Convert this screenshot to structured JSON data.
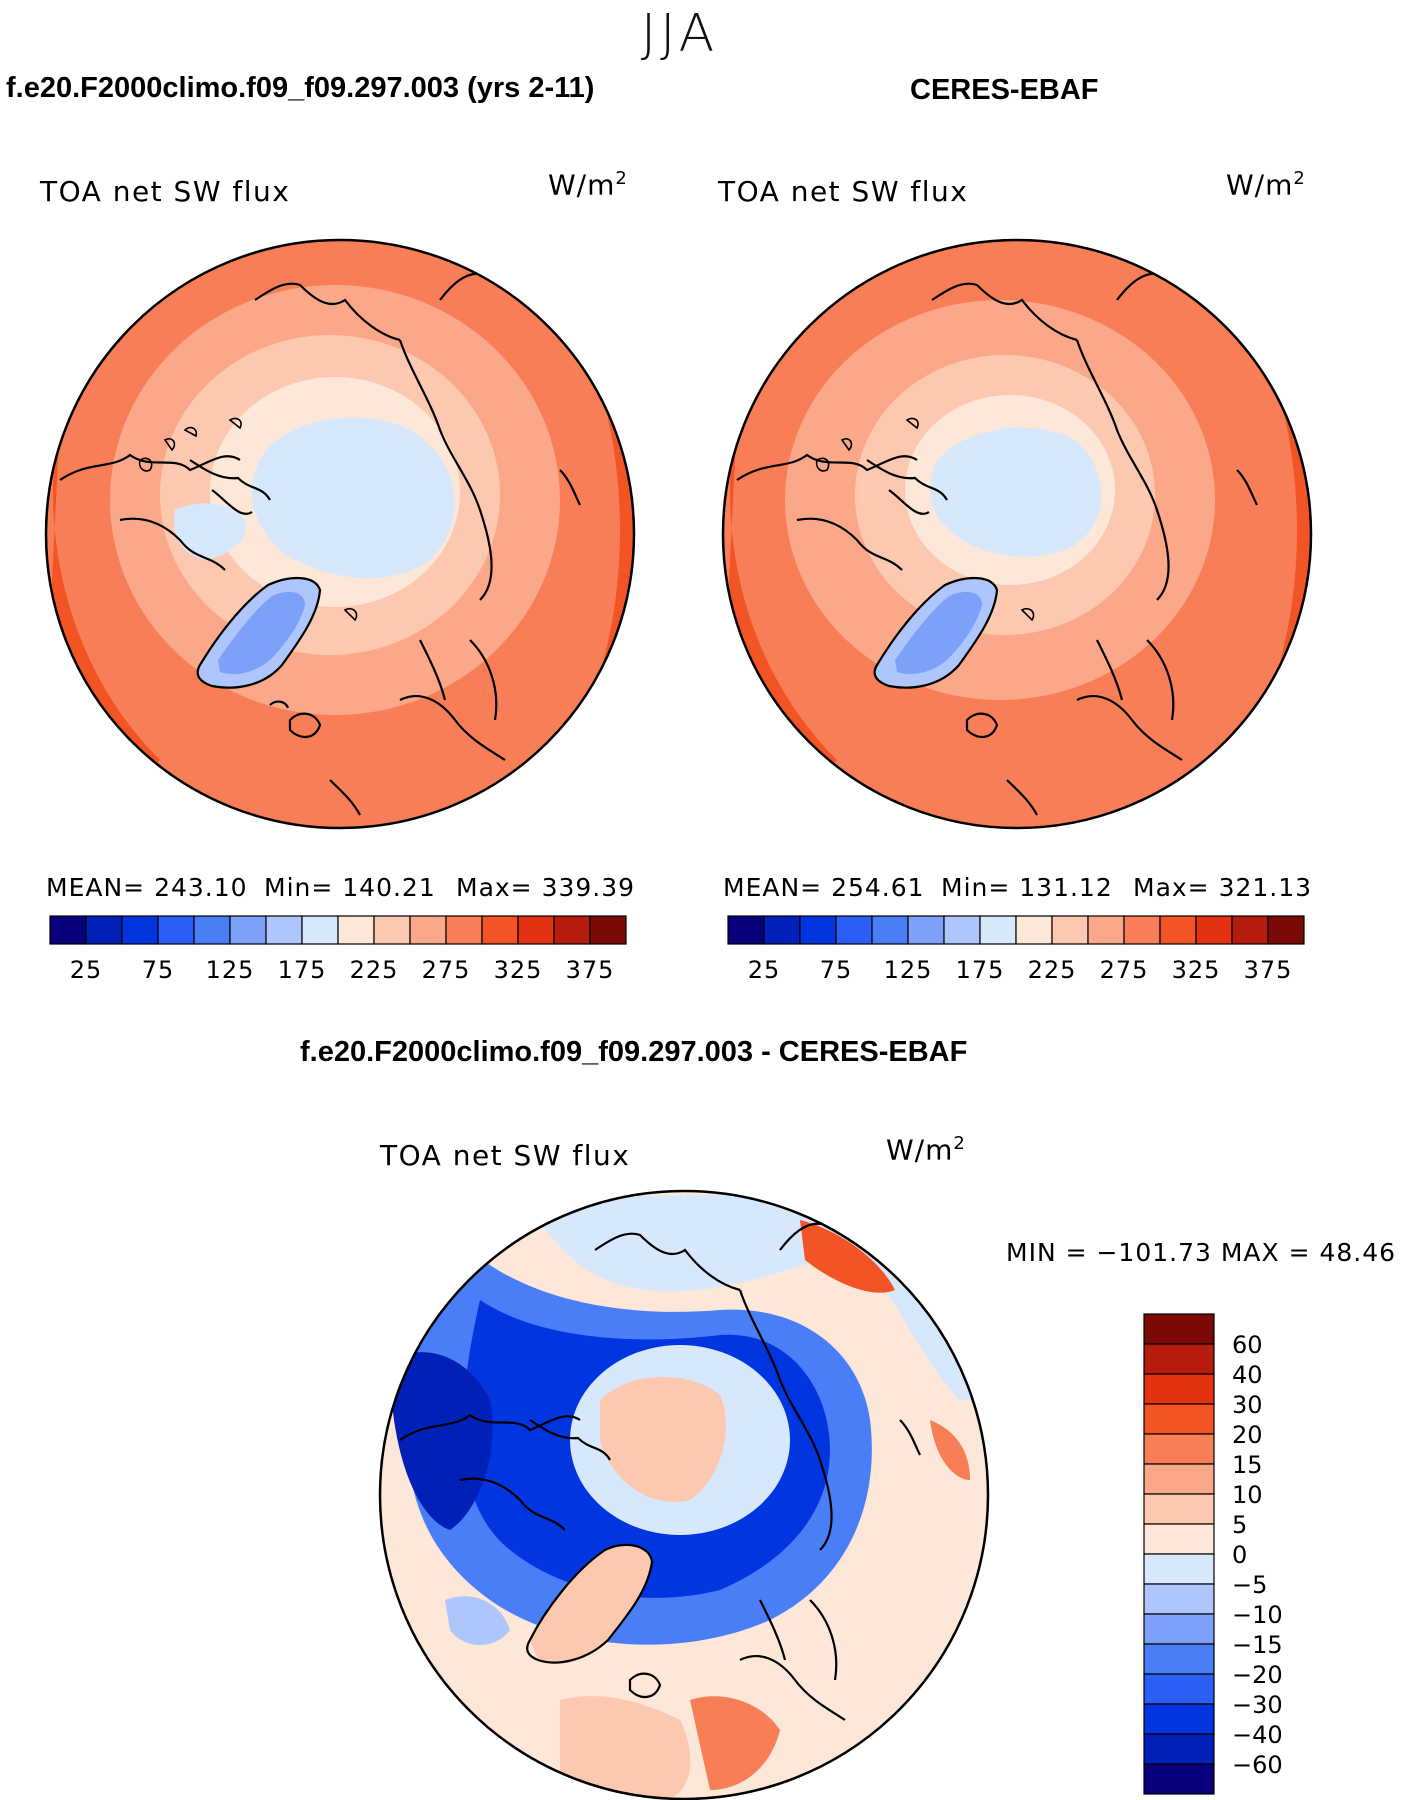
{
  "season": "JJA",
  "panels": [
    {
      "title": "f.e20.F2000climo.f09_f09.297.003 (yrs 2-11)",
      "variable": "TOA net SW flux",
      "units": "W/m",
      "units_sup": "2",
      "mean": "MEAN= 243.10",
      "min": "Min= 140.21",
      "max": "Max= 339.39"
    },
    {
      "title": "CERES-EBAF",
      "variable": "TOA net SW flux",
      "units": "W/m",
      "units_sup": "2",
      "mean": "MEAN= 254.61",
      "min": "Min= 131.12",
      "max": "Max= 321.13"
    }
  ],
  "abs_colorbar": {
    "colors": [
      "#08007a",
      "#0020b8",
      "#0035e0",
      "#2a5ef5",
      "#4a7ef7",
      "#7da0f9",
      "#aec6fb",
      "#d8e8fc",
      "#fde7d8",
      "#fcc9b0",
      "#fba78a",
      "#f77e56",
      "#f25425",
      "#e23210",
      "#b51c0b",
      "#7b0a06"
    ],
    "tick_labels": [
      "25",
      "75",
      "125",
      "175",
      "225",
      "275",
      "325",
      "375"
    ]
  },
  "diff": {
    "title": "f.e20.F2000climo.f09_f09.297.003 - CERES-EBAF",
    "variable": "TOA net SW flux",
    "units": "W/m",
    "units_sup": "2",
    "minmax": "MIN = −101.73 MAX =   48.46"
  },
  "diff_colorbar": {
    "colors": [
      "#7b0a06",
      "#b51c0b",
      "#e23210",
      "#f25425",
      "#f77e56",
      "#fba78a",
      "#fcc9b0",
      "#fde7d8",
      "#d8e8fc",
      "#aec6fb",
      "#7da0f9",
      "#4a7ef7",
      "#2a5ef5",
      "#0035e0",
      "#0020b8",
      "#08007a"
    ],
    "tick_labels": [
      "60",
      "40",
      "30",
      "20",
      "15",
      "10",
      "5",
      "0",
      "−5",
      "−10",
      "−15",
      "−20",
      "−30",
      "−40",
      "−60"
    ]
  },
  "map_colors": {
    "ocean_warm": "#f77e56",
    "ocean_warmer": "#f25425",
    "mid": "#fba78a",
    "pale": "#fcc9b0",
    "near_white": "#fde7d8",
    "ice": "#d8e8fc",
    "greenland": "#7da0f9",
    "diff_blue_dark": "#0035e0",
    "diff_blue": "#4a7ef7",
    "diff_blue_light": "#aec6fb",
    "diff_pale_blue": "#d8e8fc",
    "diff_pale_red": "#fde7d8",
    "diff_red": "#f25425"
  }
}
